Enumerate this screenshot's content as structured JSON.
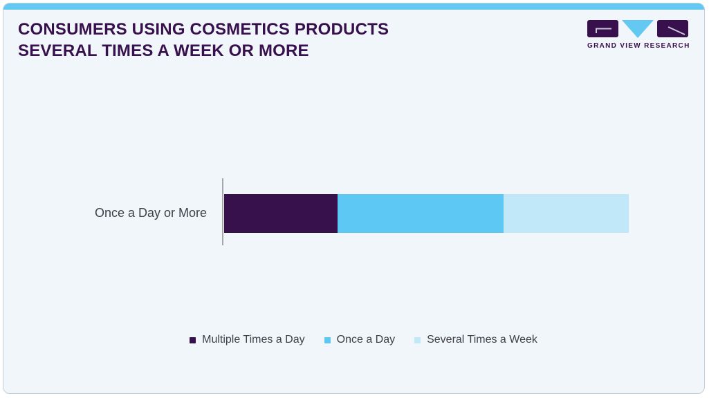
{
  "header": {
    "title_line1": "CONSUMERS USING COSMETICS PRODUCTS",
    "title_line2": "SEVERAL TIMES A WEEK OR MORE",
    "logo_text": "GRAND VIEW RESEARCH"
  },
  "colors": {
    "accent_strip": "#63c9f3",
    "title_purple": "#38104d",
    "card_background": "#f0f6fa",
    "axis_gray": "#a7a7ab",
    "label_gray": "#3f3f46"
  },
  "chart_data": {
    "type": "bar",
    "orientation": "horizontal",
    "stacked": true,
    "title": "Consumers Using Cosmetics Products Several Times a Week or More",
    "categories": [
      "Once a Day or More"
    ],
    "series": [
      {
        "name": "Multiple Times a Day",
        "color": "#36114b",
        "values": [
          28
        ]
      },
      {
        "name": "Once a Day",
        "color": "#5ec8f5",
        "values": [
          41
        ]
      },
      {
        "name": "Several Times a Week",
        "color": "#c0e8f8",
        "values": [
          31
        ]
      }
    ],
    "xlabel": "",
    "ylabel": "",
    "xlim": [
      0,
      100
    ],
    "grid": false,
    "legend_position": "bottom"
  }
}
